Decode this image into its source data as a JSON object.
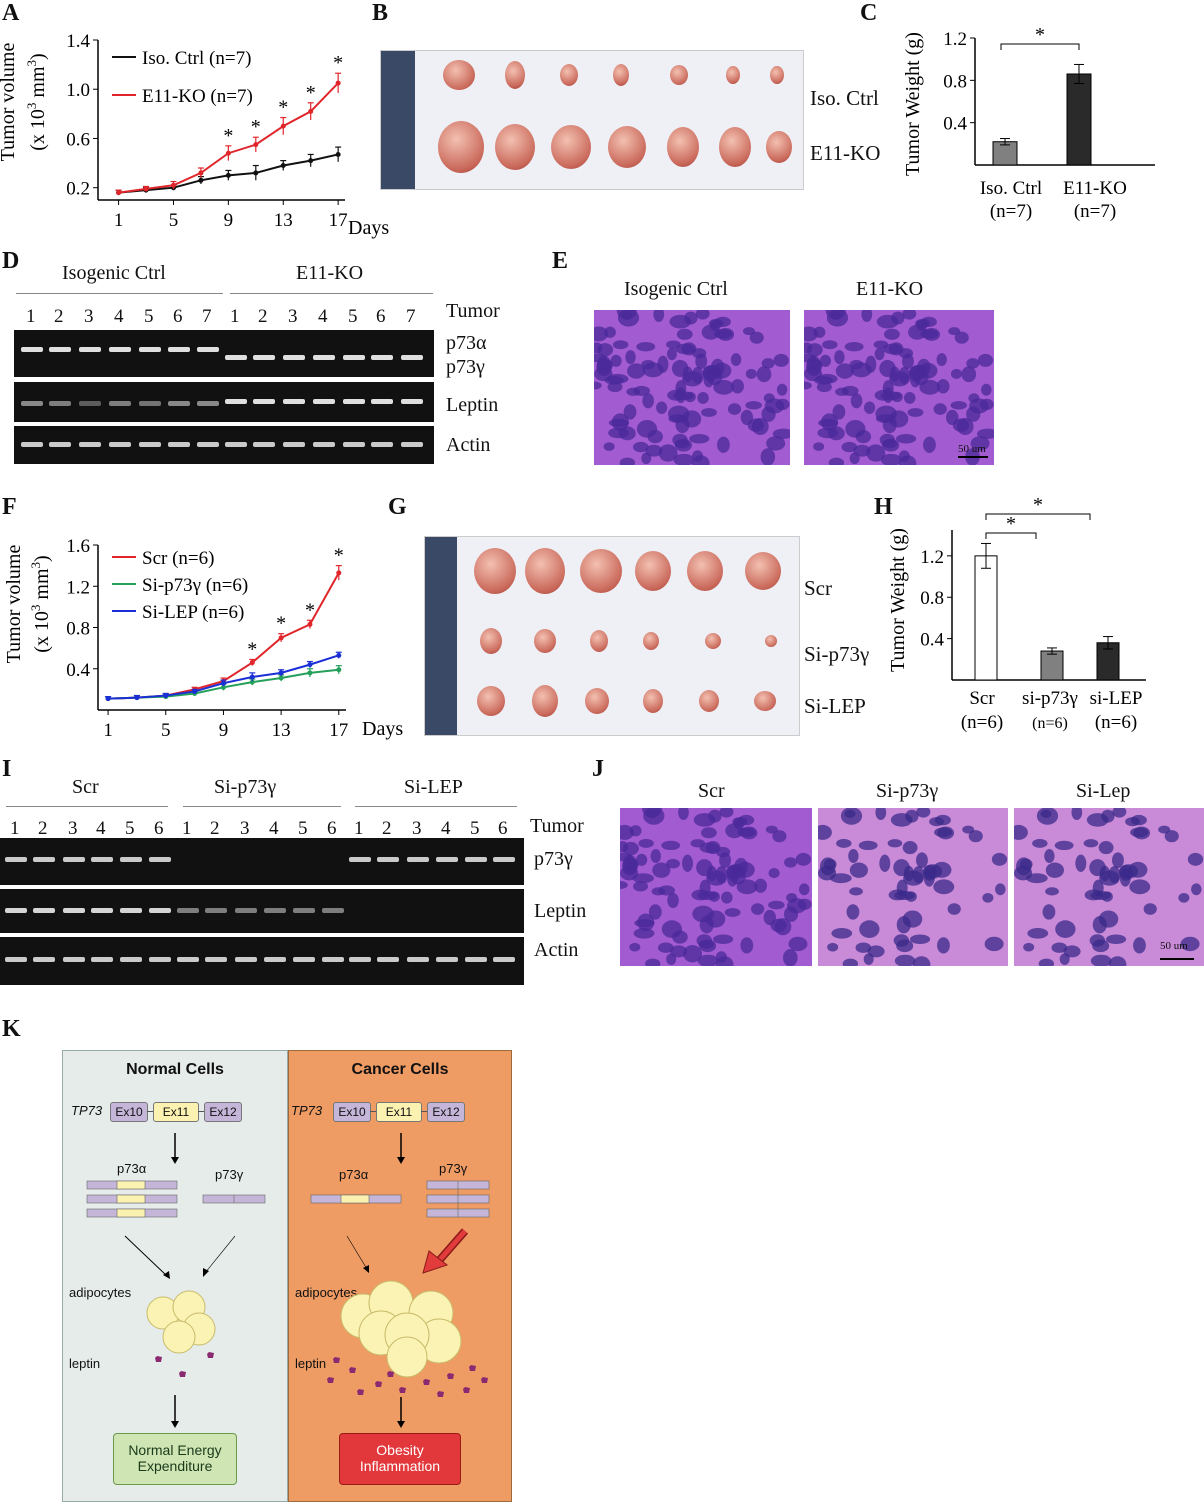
{
  "colors": {
    "red": "#e0262b",
    "black": "#111111",
    "green": "#25a05a",
    "blue": "#1a2fd6",
    "panel_normal_bg": "#e6ecea",
    "panel_cancer_bg": "#ee9b64",
    "box_normal": "#cfe5b4",
    "box_cancer": "#e2383b",
    "exon_purple": "#c5b6d9",
    "exon_yellow": "#fbf2b2",
    "he_purple": "#a25bd0"
  },
  "panels": {
    "A": "A",
    "B": "B",
    "C": "C",
    "D": "D",
    "E": "E",
    "F": "F",
    "G": "G",
    "H": "H",
    "I": "I",
    "J": "J",
    "K": "K"
  },
  "panelA": {
    "ylabel_line1": "Tumor volume",
    "ylabel_line2": "(x 10",
    "ylabel_sup": "3",
    "ylabel_mm": " mm",
    "ylabel_sup2": "3",
    "ylabel_close": ")",
    "xunit": "Days",
    "star": "*"
  },
  "panelB": {
    "row1": "Iso. Ctrl",
    "row2": "E11-KO"
  },
  "panelC": {
    "ylabel": "Tumor Weight (g)",
    "star": "*",
    "cat1_line1": "Iso. Ctrl",
    "cat1_line2": "(n=7)",
    "cat2_line1": "E11-KO",
    "cat2_line2": "(n=7)"
  },
  "panelD": {
    "group1": "Isogenic Ctrl",
    "group2": "E11-KO",
    "lanes1": [
      "1",
      "2",
      "3",
      "4",
      "5",
      "6",
      "7"
    ],
    "lanes2": [
      "1",
      "2",
      "3",
      "4",
      "5",
      "6",
      "7"
    ],
    "tumor": "Tumor",
    "band1": "p73α",
    "band1b": "p73γ",
    "band2": "Leptin",
    "band3": "Actin"
  },
  "panelE": {
    "title1": "Isogenic Ctrl",
    "title2": "E11-KO",
    "scale": "50 um"
  },
  "panelF": {
    "ylabel_line1": "Tumor volume",
    "ylabel_line2": "(x 10",
    "ylabel_sup": "3",
    "ylabel_mm": " mm",
    "ylabel_sup2": "3",
    "ylabel_close": ")",
    "xunit": "Days",
    "star": "*"
  },
  "panelG": {
    "row1": "Scr",
    "row2": "Si-p73γ",
    "row3": "Si-LEP"
  },
  "panelH": {
    "ylabel": "Tumor Weight (g)",
    "star": "*",
    "cat1_line1": "Scr",
    "cat1_line2": "(n=6)",
    "cat2_line1": "si-p73γ",
    "cat2_line2": "(n=6)",
    "cat3_line1": "si-LEP",
    "cat3_line2": "(n=6)"
  },
  "panelI": {
    "group1": "Scr",
    "group2": "Si-p73γ",
    "group3": "Si-LEP",
    "lanes": [
      "1",
      "2",
      "3",
      "4",
      "5",
      "6"
    ],
    "tumor": "Tumor",
    "band1": "p73γ",
    "band2": "Leptin",
    "band3": "Actin"
  },
  "panelJ": {
    "title1": "Scr",
    "title2": "Si-p73γ",
    "title3": "Si-Lep",
    "scale": "50 um"
  },
  "panelK": {
    "normal": {
      "title": "Normal Cells",
      "gene": "TP73",
      "exons": [
        "Ex10",
        "Ex11",
        "Ex12"
      ],
      "iso1": "p73α",
      "iso2": "p73γ",
      "adipocytes": "adipocytes",
      "leptin": "leptin",
      "outcome_line1": "Normal Energy",
      "outcome_line2": "Expenditure"
    },
    "cancer": {
      "title": "Cancer Cells",
      "gene": "TP73",
      "exons": [
        "Ex10",
        "Ex11",
        "Ex12"
      ],
      "iso1": "p73α",
      "iso2": "p73γ",
      "adipocytes": "adipocytes",
      "leptin": "leptin",
      "outcome_line1": "Obesity",
      "outcome_line2": "Inflammation"
    }
  },
  "chart_data": [
    {
      "id": "A",
      "type": "line",
      "x": [
        1,
        3,
        5,
        7,
        9,
        11,
        13,
        15,
        17
      ],
      "xticks": [
        "1",
        "5",
        "9",
        "13",
        "17"
      ],
      "xtick_values": [
        1,
        5,
        9,
        13,
        17
      ],
      "yticks": [
        "0.2",
        "0.6",
        "1.0",
        "1.4"
      ],
      "ytick_values": [
        0.2,
        0.6,
        1.0,
        1.4
      ],
      "xlim": [
        -0.5,
        17.5
      ],
      "ylim": [
        0.1,
        1.4
      ],
      "series": [
        {
          "name": "Iso. Ctrl (n=7)",
          "color": "#111111",
          "values": [
            0.16,
            0.18,
            0.2,
            0.26,
            0.3,
            0.32,
            0.38,
            0.42,
            0.47
          ],
          "err": [
            0.02,
            0.02,
            0.02,
            0.03,
            0.04,
            0.06,
            0.04,
            0.05,
            0.06
          ]
        },
        {
          "name": "E11-KO (n=7)",
          "color": "#e0262b",
          "values": [
            0.16,
            0.19,
            0.22,
            0.32,
            0.48,
            0.55,
            0.7,
            0.82,
            1.05
          ],
          "err": [
            0.02,
            0.02,
            0.03,
            0.04,
            0.06,
            0.06,
            0.07,
            0.07,
            0.08
          ]
        }
      ],
      "stars_at": [
        9,
        11,
        13,
        15,
        17
      ]
    },
    {
      "id": "C",
      "type": "bar",
      "categories": [
        "Iso. Ctrl (n=7)",
        "E11-KO (n=7)"
      ],
      "values": [
        0.22,
        0.86
      ],
      "err": [
        0.03,
        0.09
      ],
      "bar_colors": [
        "#808080",
        "#2a2a2a"
      ],
      "yticks": [
        "0.4",
        "0.8",
        "1.2"
      ],
      "ytick_values": [
        0.4,
        0.8,
        1.2
      ],
      "ylim": [
        0,
        1.2
      ]
    },
    {
      "id": "F",
      "type": "line",
      "x": [
        1,
        3,
        5,
        7,
        9,
        11,
        13,
        15,
        17
      ],
      "xticks": [
        "1",
        "5",
        "9",
        "13",
        "17"
      ],
      "xtick_values": [
        1,
        5,
        9,
        13,
        17
      ],
      "yticks": [
        "0.4",
        "0.8",
        "1.2",
        "1.6"
      ],
      "ytick_values": [
        0.4,
        0.8,
        1.2,
        1.6
      ],
      "xlim": [
        0.3,
        17.5
      ],
      "ylim": [
        0,
        1.6
      ],
      "series": [
        {
          "name": "Scr (n=6)",
          "color": "#e0262b",
          "values": [
            0.11,
            0.12,
            0.14,
            0.2,
            0.28,
            0.46,
            0.7,
            0.83,
            1.33
          ],
          "err": [
            0.02,
            0.02,
            0.02,
            0.02,
            0.03,
            0.03,
            0.04,
            0.04,
            0.07
          ]
        },
        {
          "name": "Si-p73γ (n=6)",
          "color": "#25a05a",
          "values": [
            0.11,
            0.12,
            0.13,
            0.16,
            0.22,
            0.27,
            0.31,
            0.36,
            0.39
          ],
          "err": [
            0.02,
            0.02,
            0.02,
            0.02,
            0.03,
            0.03,
            0.03,
            0.04,
            0.04
          ]
        },
        {
          "name": "Si-LEP (n=6)",
          "color": "#1a2fd6",
          "values": [
            0.11,
            0.12,
            0.14,
            0.18,
            0.26,
            0.32,
            0.36,
            0.44,
            0.53
          ],
          "err": [
            0.02,
            0.02,
            0.02,
            0.02,
            0.03,
            0.04,
            0.03,
            0.03,
            0.03
          ]
        }
      ],
      "stars_at": [
        11,
        13,
        15,
        17
      ]
    },
    {
      "id": "H",
      "type": "bar",
      "categories": [
        "Scr (n=6)",
        "si-p73γ (n=6)",
        "si-LEP (n=6)"
      ],
      "values": [
        1.2,
        0.28,
        0.36
      ],
      "err": [
        0.12,
        0.03,
        0.06
      ],
      "bar_colors": [
        "#ffffff",
        "#808080",
        "#2a2a2a"
      ],
      "yticks": [
        "0.4",
        "0.8",
        "1.2"
      ],
      "ytick_values": [
        0.4,
        0.8,
        1.2
      ],
      "ylim": [
        0,
        1.45
      ]
    }
  ]
}
